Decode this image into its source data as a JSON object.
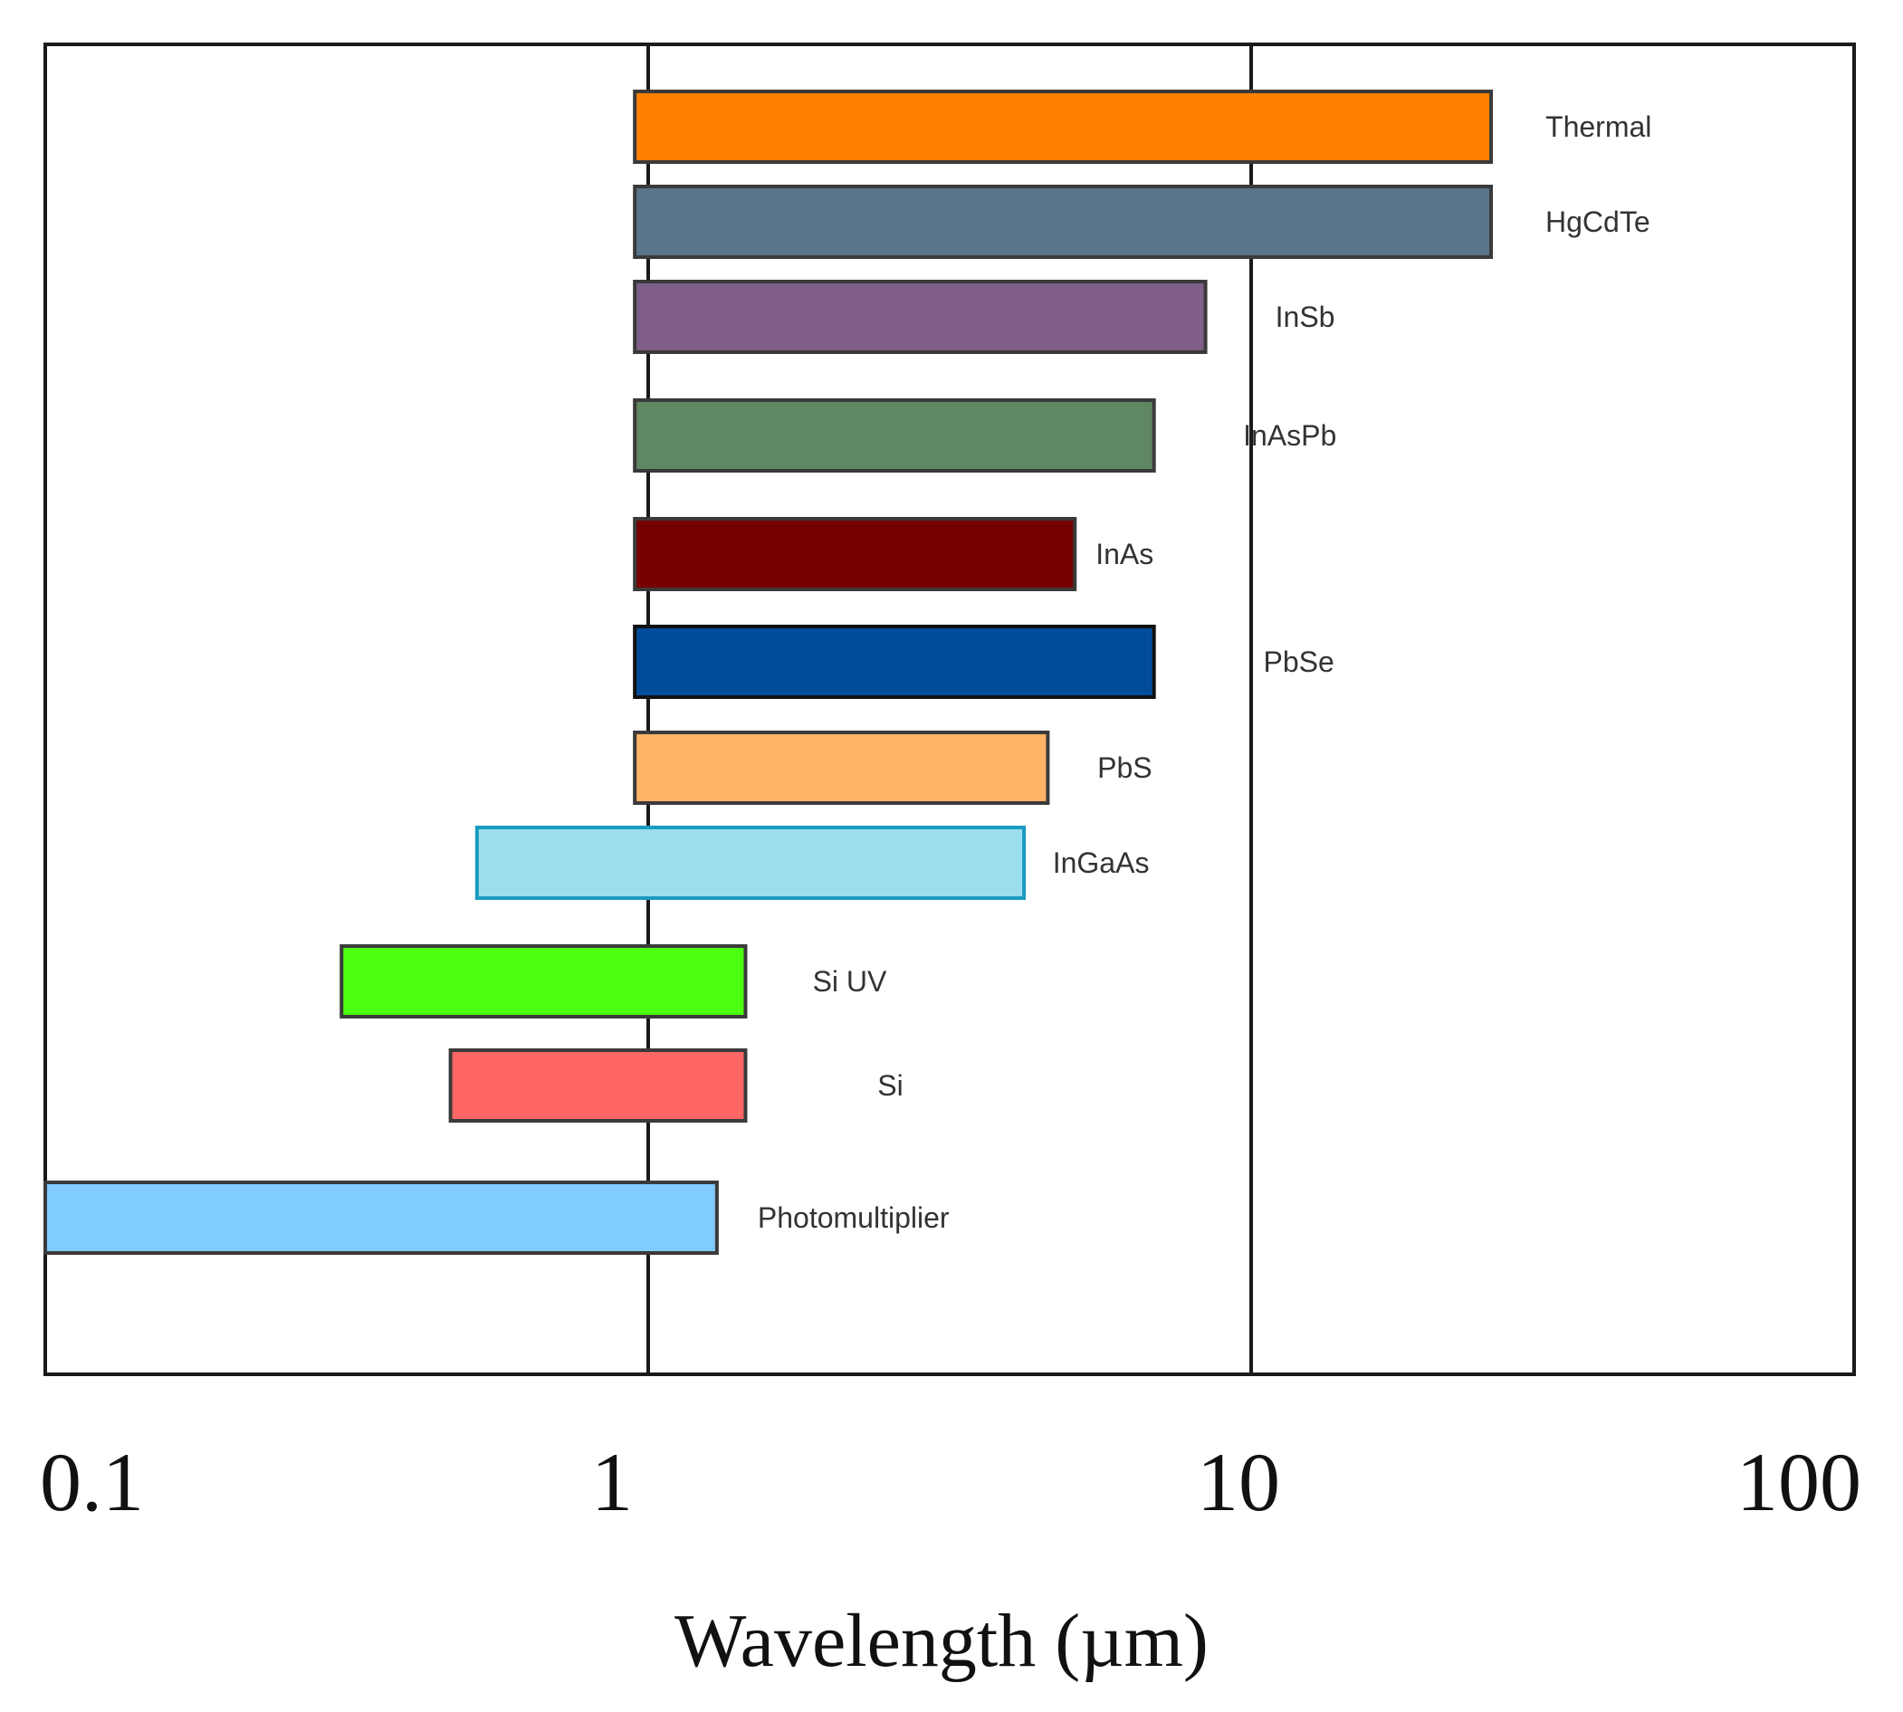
{
  "chart_data": {
    "type": "bar",
    "orientation": "horizontal-range",
    "title": "",
    "xlabel": "Wavelength (µm)",
    "ylabel": "",
    "xscale": "log",
    "xlim": [
      0.1,
      100
    ],
    "xticks": [
      0.1,
      1,
      10,
      100
    ],
    "xtick_labels": [
      "0.1",
      "1",
      "10",
      "100"
    ],
    "vertical_gridlines_at": [
      1,
      10
    ],
    "series": [
      {
        "name": "Thermal",
        "start": 0.95,
        "end": 25,
        "fill": "#ff8000",
        "stroke": "#3a3a3a"
      },
      {
        "name": "HgCdTe",
        "start": 0.95,
        "end": 25,
        "fill": "#5a758a",
        "stroke": "#3a3a3a"
      },
      {
        "name": "InSb",
        "start": 0.95,
        "end": 8.4,
        "fill": "#7f5e87",
        "stroke": "#3a3a3a"
      },
      {
        "name": "InAsPb",
        "start": 0.95,
        "end": 6.9,
        "fill": "#5f8762",
        "stroke": "#3a3a3a"
      },
      {
        "name": "InAs",
        "start": 0.95,
        "end": 5.1,
        "fill": "#760000",
        "stroke": "#3a3a3a"
      },
      {
        "name": "PbSe",
        "start": 0.95,
        "end": 6.9,
        "fill": "#014d9a",
        "stroke": "#111111"
      },
      {
        "name": "PbS",
        "start": 0.95,
        "end": 4.6,
        "fill": "#ffb366",
        "stroke": "#3a3a3a"
      },
      {
        "name": "InGaAs",
        "start": 0.52,
        "end": 4.2,
        "fill": "#9ddeee",
        "stroke": "#1a9bc0"
      },
      {
        "name": "Si UV",
        "start": 0.31,
        "end": 1.45,
        "fill": "#4dff11",
        "stroke": "#3a3a3a"
      },
      {
        "name": "Si",
        "start": 0.47,
        "end": 1.45,
        "fill": "#ff6666",
        "stroke": "#3a3a3a"
      },
      {
        "name": "Photomultiplier",
        "start": 0.1,
        "end": 1.3,
        "fill": "#80ccff",
        "stroke": "#3a3a3a"
      }
    ]
  }
}
